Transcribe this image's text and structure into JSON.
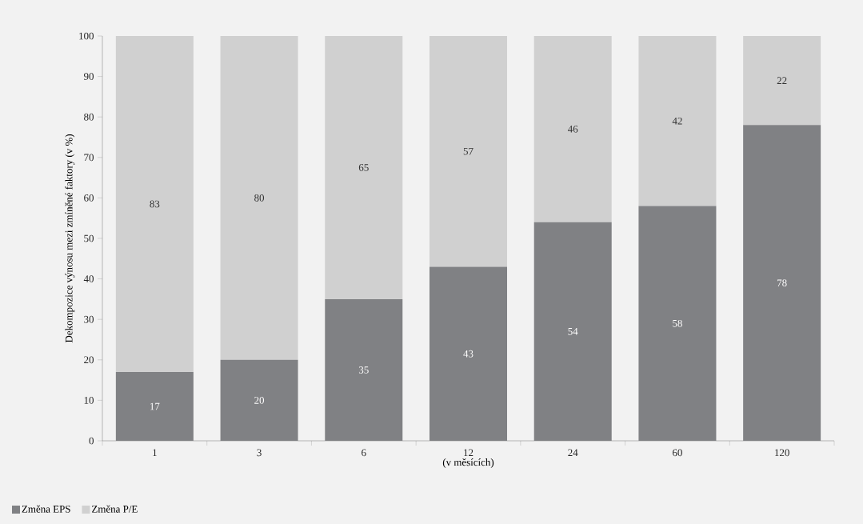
{
  "chart_data": {
    "type": "bar",
    "stacked": true,
    "xlabel": "(v měsících)",
    "ylabel": "Dekompozice výnosu mezi zmíněné faktory (v %)",
    "categories": [
      "1",
      "3",
      "6",
      "12",
      "24",
      "60",
      "120"
    ],
    "series": [
      {
        "name": "Změna EPS",
        "color": "#808184",
        "values": [
          17,
          20,
          35,
          43,
          54,
          58,
          78
        ]
      },
      {
        "name": "Změna P/E",
        "color": "#d0d0d0",
        "values": [
          83,
          80,
          65,
          57,
          46,
          42,
          22
        ]
      }
    ],
    "ylim": [
      0,
      100
    ],
    "yticks": [
      0,
      10,
      20,
      30,
      40,
      50,
      60,
      70,
      80,
      90,
      100
    ],
    "data_labels": true,
    "grid": false,
    "legend": "bottom left"
  }
}
